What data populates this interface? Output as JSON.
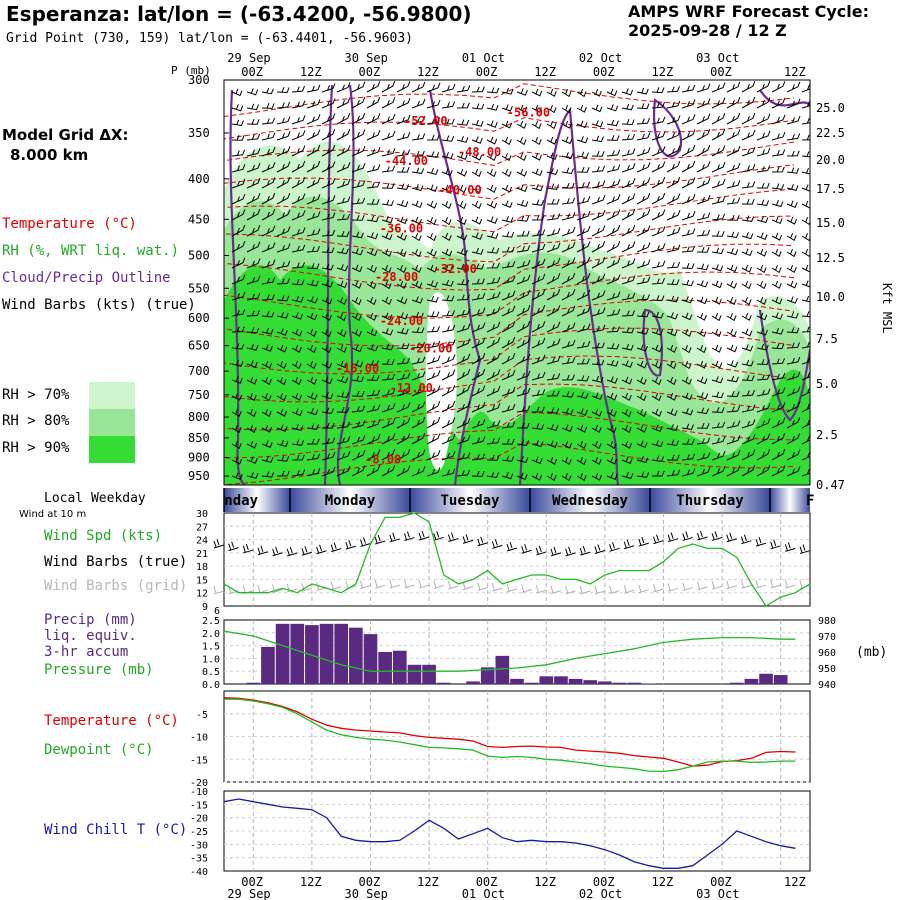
{
  "header": {
    "title": "Esperanza:  lat/lon = (-63.4200, -56.9800)",
    "grid_point": "Grid Point (730, 159) lat/lon = (-63.4401, -56.9603)",
    "cycle_line1": "AMPS WRF Forecast Cycle:",
    "cycle_line2": "2025-09-28 / 12  Z",
    "model_grid_line1": "Model Grid ΔX:",
    "model_grid_line2": "8.000 km"
  },
  "colors": {
    "temperature": "#e00000",
    "rh": "#22aa22",
    "cloud": "#6a2c91",
    "wind": "#000000",
    "wind_grid": "#b0b0b0",
    "rh70": "#ccf5cc",
    "rh80": "#99e699",
    "rh90": "#33dd33",
    "precip": "#5a2a82",
    "pressure": "#22bb22",
    "dewpoint": "#22bb22",
    "windchill": "#1a1aa0"
  },
  "legend": {
    "temperature": "Temperature (°C)",
    "rh": "RH (%, WRT liq. wat.)",
    "cloud": "Cloud/Precip Outline",
    "wind": "Wind Barbs (kts) (true)",
    "rh70": "RH > 70%",
    "rh80": "RH > 80%",
    "rh90": "RH > 90%"
  },
  "side_labels": {
    "local_weekday": "Local Weekday",
    "wind_at_10m": "Wind at 10 m",
    "wind_spd": "Wind Spd (kts)",
    "wind_barbs_true": "Wind Barbs (true)",
    "wind_barbs_grid": "Wind Barbs (grid)",
    "precip1": "Precip (mm)",
    "precip2": "liq. equiv.",
    "precip3": "3-hr accum",
    "pressure": "Pressure (mb)",
    "pressure_unit": "(mb)",
    "temperature": "Temperature (°C)",
    "dewpoint": "Dewpoint (°C)",
    "windchill": "Wind Chill T (°C)",
    "kft": "Kft MSL",
    "p_mb": "P (mb)"
  },
  "chart_data": {
    "type": "meteogram",
    "time_axis": {
      "hour_labels": [
        "00Z",
        "12Z",
        "00Z",
        "12Z",
        "00Z",
        "12Z",
        "00Z",
        "12Z",
        "00Z",
        "12Z"
      ],
      "top_date_labels": [
        "29 Sep",
        "30 Sep",
        "01 Oct",
        "02 Oct",
        "03 Oct"
      ],
      "bottom_date_labels": [
        "29 Sep",
        "30 Sep",
        "01 Oct",
        "02 Oct",
        "03 Oct"
      ],
      "weekdays": [
        "nday",
        "Monday",
        "Tuesday",
        "Wednesday",
        "Thursday",
        "F"
      ]
    },
    "cross_section": {
      "pressure_ticks": [
        "300",
        "350",
        "400",
        "450",
        "500",
        "550",
        "600",
        "650",
        "700",
        "750",
        "800",
        "850",
        "900",
        "950"
      ],
      "kft_ticks": [
        "25.0",
        "22.5",
        "20.0",
        "17.5",
        "15.0",
        "12.5",
        "10.0",
        "7.5",
        "5.0",
        "2.5",
        "0.47"
      ],
      "temperature_labels": [
        {
          "text": "-52.00",
          "t": 41,
          "p": 338
        },
        {
          "text": "-56.00",
          "t": 62,
          "p": 330
        },
        {
          "text": "-48.00",
          "t": 52,
          "p": 370
        },
        {
          "text": "-44.00",
          "t": 37,
          "p": 380
        },
        {
          "text": "-40.00",
          "t": 48,
          "p": 413
        },
        {
          "text": "-36.00",
          "t": 36,
          "p": 462
        },
        {
          "text": "-32.00",
          "t": 47,
          "p": 520
        },
        {
          "text": "-28.00",
          "t": 35,
          "p": 532
        },
        {
          "text": "-24.00",
          "t": 36,
          "p": 605
        },
        {
          "text": "-20.00",
          "t": 42,
          "p": 655
        },
        {
          "text": "-16.00",
          "t": 27,
          "p": 695
        },
        {
          "text": "-12.00",
          "t": 38,
          "p": 735
        },
        {
          "text": "-8.00",
          "t": 33,
          "p": 905
        }
      ]
    },
    "wind_speed": {
      "ylim": [
        9,
        30
      ],
      "yticks": [
        "30",
        "27",
        "24",
        "21",
        "18",
        "15",
        "12",
        "9"
      ],
      "t": [
        0,
        3,
        6,
        9,
        12,
        15,
        18,
        21,
        24,
        27,
        30,
        33,
        36,
        39,
        42,
        45,
        48,
        51,
        54,
        57,
        60,
        63,
        66,
        69,
        72,
        75,
        78,
        81,
        84,
        87,
        90,
        93,
        96,
        99,
        102,
        105,
        108,
        111,
        114,
        117,
        120
      ],
      "values": [
        14,
        12,
        12,
        12,
        13,
        12,
        14,
        13,
        12,
        14,
        23,
        29,
        29,
        30,
        28,
        16,
        14,
        15,
        17,
        14,
        15,
        16,
        16,
        15,
        15,
        14,
        16,
        17,
        17,
        17,
        19,
        22,
        23,
        22,
        22,
        20,
        14,
        9,
        11,
        12,
        14
      ]
    },
    "precip": {
      "ylim": [
        0,
        2.5
      ],
      "yticks": [
        "2.5",
        "2.0",
        "1.5",
        "1.0",
        "0.5",
        "0.0"
      ],
      "bars": [
        {
          "t": 6,
          "v": 0.05
        },
        {
          "t": 9,
          "v": 1.45
        },
        {
          "t": 12,
          "v": 2.35
        },
        {
          "t": 15,
          "v": 2.35
        },
        {
          "t": 18,
          "v": 2.3
        },
        {
          "t": 21,
          "v": 2.35
        },
        {
          "t": 24,
          "v": 2.35
        },
        {
          "t": 27,
          "v": 2.2
        },
        {
          "t": 30,
          "v": 1.95
        },
        {
          "t": 33,
          "v": 1.25
        },
        {
          "t": 36,
          "v": 1.3
        },
        {
          "t": 39,
          "v": 0.75
        },
        {
          "t": 42,
          "v": 0.75
        },
        {
          "t": 45,
          "v": 0.05
        },
        {
          "t": 48,
          "v": 0.0
        },
        {
          "t": 51,
          "v": 0.1
        },
        {
          "t": 54,
          "v": 0.65
        },
        {
          "t": 57,
          "v": 1.1
        },
        {
          "t": 60,
          "v": 0.2
        },
        {
          "t": 63,
          "v": 0.05
        },
        {
          "t": 66,
          "v": 0.3
        },
        {
          "t": 69,
          "v": 0.3
        },
        {
          "t": 72,
          "v": 0.2
        },
        {
          "t": 75,
          "v": 0.15
        },
        {
          "t": 78,
          "v": 0.1
        },
        {
          "t": 81,
          "v": 0.05
        },
        {
          "t": 84,
          "v": 0.05
        },
        {
          "t": 87,
          "v": 0.02
        },
        {
          "t": 90,
          "v": 0.0
        },
        {
          "t": 93,
          "v": 0.0
        },
        {
          "t": 96,
          "v": 0.0
        },
        {
          "t": 99,
          "v": 0.0
        },
        {
          "t": 102,
          "v": 0.0
        },
        {
          "t": 105,
          "v": 0.05
        },
        {
          "t": 108,
          "v": 0.2
        },
        {
          "t": 111,
          "v": 0.4
        },
        {
          "t": 114,
          "v": 0.35
        }
      ],
      "pressure_ylim": [
        940,
        980
      ],
      "pressure_yticks": [
        "980",
        "970",
        "960",
        "950",
        "940"
      ],
      "pressure_t": [
        0,
        6,
        12,
        18,
        24,
        30,
        36,
        42,
        48,
        54,
        60,
        66,
        72,
        78,
        84,
        90,
        96,
        102,
        108,
        114,
        117
      ],
      "pressure_values": [
        973,
        970,
        964,
        958,
        952,
        948,
        948,
        948,
        948,
        949,
        950,
        952,
        956,
        959,
        962,
        966,
        968,
        969,
        969,
        968,
        968
      ]
    },
    "temp_dew": {
      "ylim": [
        -20,
        0
      ],
      "yticks": [
        "-5",
        "-10",
        "-15",
        "-20"
      ],
      "t": [
        0,
        3,
        6,
        9,
        12,
        15,
        18,
        21,
        24,
        27,
        30,
        33,
        36,
        39,
        42,
        45,
        48,
        51,
        54,
        57,
        60,
        63,
        66,
        69,
        72,
        75,
        78,
        81,
        84,
        87,
        90,
        93,
        96,
        99,
        102,
        105,
        108,
        111,
        114,
        117
      ],
      "temperature": [
        -1.5,
        -1.6,
        -2,
        -2.6,
        -3.4,
        -4.6,
        -6.2,
        -7.5,
        -8.2,
        -8.6,
        -8.8,
        -9,
        -9.2,
        -9.8,
        -10.2,
        -10.4,
        -10.6,
        -11,
        -12.2,
        -12.4,
        -12.2,
        -12.1,
        -12.3,
        -12.4,
        -13,
        -13.2,
        -13.4,
        -13.7,
        -14.2,
        -14.5,
        -14.8,
        -15.6,
        -16.5,
        -16.3,
        -15.5,
        -15.3,
        -14.8,
        -13.5,
        -13.3,
        -13.4
      ],
      "dewpoint": [
        -1.8,
        -1.8,
        -2.2,
        -2.8,
        -3.6,
        -5,
        -6.8,
        -8.6,
        -9.6,
        -10.2,
        -10.6,
        -10.8,
        -11.2,
        -11.8,
        -12.4,
        -12.5,
        -12.7,
        -13,
        -14.3,
        -14.6,
        -14.4,
        -14.6,
        -15,
        -15.2,
        -15.6,
        -16,
        -16.5,
        -16.8,
        -17.1,
        -17.6,
        -17.7,
        -17.3,
        -16.5,
        -15.6,
        -15.4,
        -15.4,
        -15.7,
        -15.6,
        -15.4,
        -15.4
      ]
    },
    "windchill": {
      "ylim": [
        -40,
        -10
      ],
      "yticks": [
        "-10",
        "-15",
        "-20",
        "-25",
        "-30",
        "-35",
        "-40"
      ],
      "t": [
        0,
        3,
        6,
        9,
        12,
        15,
        18,
        21,
        24,
        27,
        30,
        33,
        36,
        39,
        42,
        45,
        48,
        51,
        54,
        57,
        60,
        63,
        66,
        69,
        72,
        75,
        78,
        81,
        84,
        87,
        90,
        93,
        96,
        99,
        102,
        105,
        108,
        111,
        114,
        117
      ],
      "values": [
        -14,
        -13,
        -14,
        -15,
        -16,
        -16.5,
        -17,
        -20,
        -27,
        -28.5,
        -29,
        -29,
        -28.5,
        -25,
        -21,
        -24,
        -28,
        -26,
        -24,
        -27.5,
        -29,
        -28.5,
        -29,
        -29,
        -29.5,
        -30.5,
        -32,
        -34,
        -36.5,
        -38,
        -39,
        -39,
        -38,
        -34,
        -30,
        -25,
        -27,
        -29,
        -30.5,
        -31.5
      ]
    }
  }
}
